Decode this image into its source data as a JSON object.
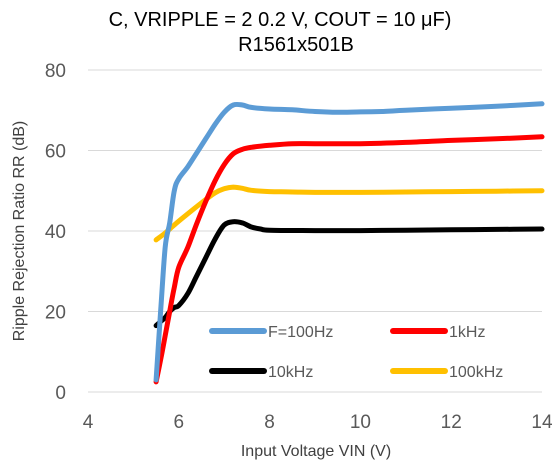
{
  "chart_data": {
    "type": "line",
    "title_line1": "C, VRIPPLE = 2 0.2 V, COUT = 10 μF)",
    "title_line2": "R1561x501B",
    "xlabel": "Input Voltage VIN (V)",
    "ylabel": "Ripple Rejection Ratio RR (dB)",
    "xlim": [
      4,
      14
    ],
    "ylim": [
      0,
      80
    ],
    "xticks": [
      4,
      6,
      8,
      10,
      12,
      14
    ],
    "yticks": [
      0,
      20,
      40,
      60,
      80
    ],
    "grid": "horizontal",
    "legend_placement": "bottom-right-inside",
    "series": [
      {
        "name": "F=100Hz",
        "color": "#5b9bd5",
        "x": [
          5.5,
          5.6,
          5.7,
          5.8,
          5.9,
          6.0,
          6.2,
          6.4,
          6.6,
          6.8,
          7.0,
          7.2,
          7.4,
          7.6,
          8.0,
          8.5,
          9.0,
          9.5,
          10.0,
          10.5,
          11.0,
          12.0,
          13.0,
          14.0
        ],
        "values": [
          3,
          20,
          36,
          42,
          50,
          53,
          56,
          59.5,
          63,
          66.5,
          69.5,
          71.3,
          71.3,
          70.7,
          70.3,
          70.1,
          69.7,
          69.5,
          69.6,
          69.7,
          70.0,
          70.5,
          71.0,
          71.6
        ]
      },
      {
        "name": "1kHz",
        "color": "#ff0000",
        "x": [
          5.5,
          5.6,
          5.7,
          5.8,
          5.9,
          6.0,
          6.2,
          6.4,
          6.6,
          6.8,
          7.0,
          7.2,
          7.4,
          7.6,
          8.0,
          8.5,
          9.0,
          10.0,
          11.0,
          12.0,
          13.0,
          14.0
        ],
        "values": [
          2.5,
          8,
          14,
          20,
          26,
          31,
          36,
          42,
          47.5,
          52.5,
          56.5,
          59.2,
          60.3,
          60.8,
          61.3,
          61.7,
          61.7,
          61.7,
          62.0,
          62.5,
          62.9,
          63.4
        ]
      },
      {
        "name": "10kHz",
        "color": "#000000",
        "x": [
          5.5,
          5.6,
          5.7,
          5.8,
          5.9,
          6.0,
          6.2,
          6.4,
          6.6,
          6.8,
          7.0,
          7.2,
          7.4,
          7.6,
          7.8,
          8.0,
          9.0,
          10.0,
          11.0,
          12.0,
          13.0,
          14.0
        ],
        "values": [
          16.5,
          17.5,
          18.5,
          20,
          21,
          21.5,
          24.5,
          29,
          33.5,
          38,
          41.5,
          42.3,
          42,
          41,
          40.5,
          40.2,
          40.1,
          40.1,
          40.2,
          40.3,
          40.4,
          40.5
        ]
      },
      {
        "name": "100kHz",
        "color": "#ffc000",
        "x": [
          5.5,
          5.7,
          5.9,
          6.2,
          6.5,
          6.8,
          7.0,
          7.2,
          7.4,
          7.6,
          8.0,
          8.5,
          9.0,
          10.0,
          11.0,
          12.0,
          13.0,
          14.0
        ],
        "values": [
          37.8,
          39.5,
          41.5,
          44.3,
          47,
          49.5,
          50.5,
          50.9,
          50.6,
          50.1,
          49.8,
          49.7,
          49.6,
          49.6,
          49.7,
          49.8,
          49.9,
          50.0
        ]
      }
    ]
  }
}
